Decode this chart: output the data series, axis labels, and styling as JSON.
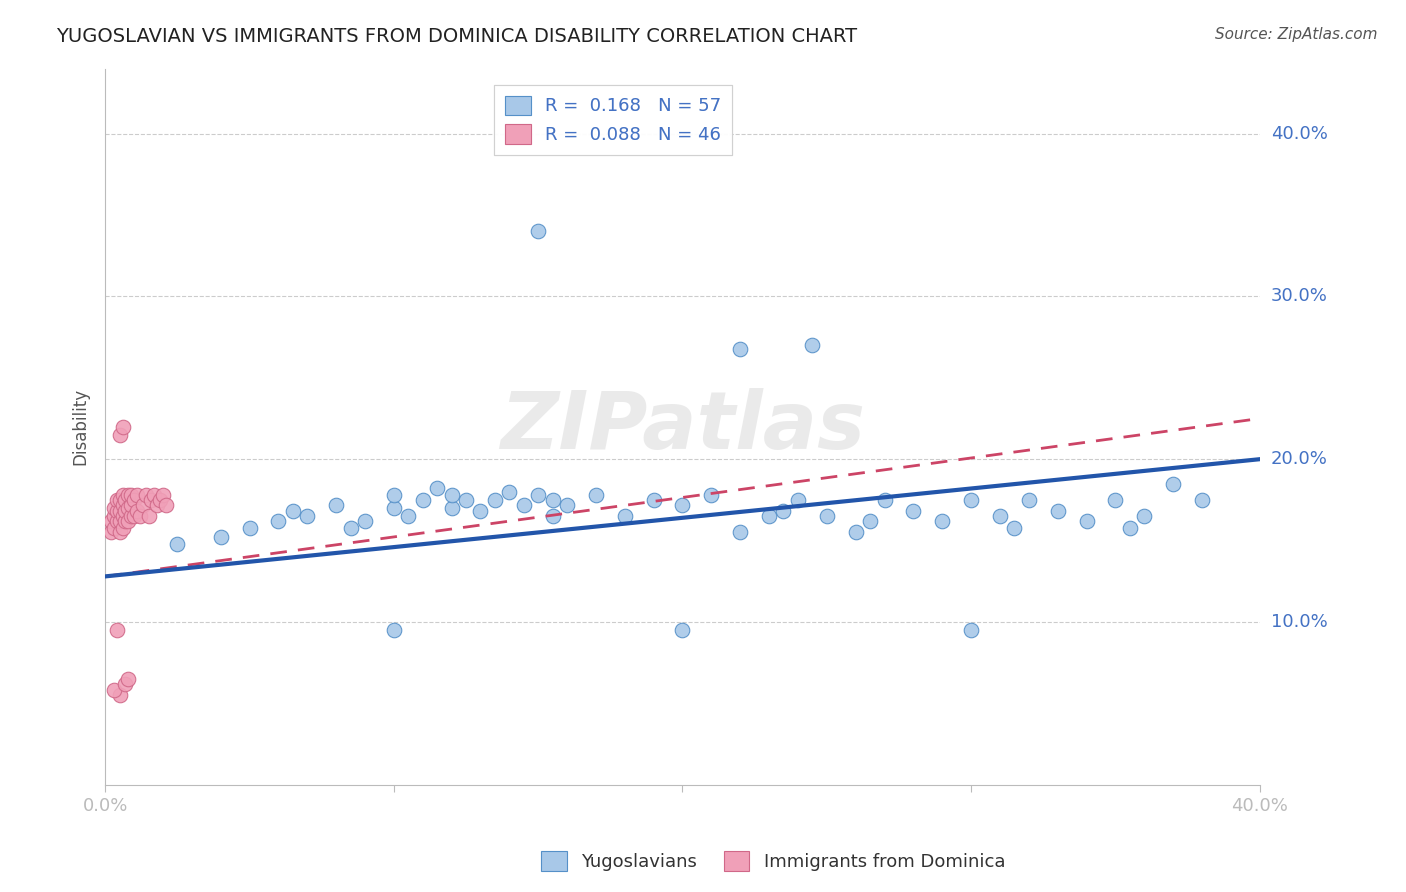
{
  "title": "YUGOSLAVIAN VS IMMIGRANTS FROM DOMINICA DISABILITY CORRELATION CHART",
  "source": "Source: ZipAtlas.com",
  "ylabel": "Disability",
  "y_tick_labels": [
    "10.0%",
    "20.0%",
    "30.0%",
    "40.0%"
  ],
  "y_tick_values": [
    0.1,
    0.2,
    0.3,
    0.4
  ],
  "xlim": [
    0.0,
    0.4
  ],
  "ylim": [
    0.0,
    0.44
  ],
  "legend1_R": "0.168",
  "legend1_N": "57",
  "legend2_R": "0.088",
  "legend2_N": "46",
  "blue_fill": "#A8C8E8",
  "blue_edge": "#5590C8",
  "pink_fill": "#F0A0B8",
  "pink_edge": "#D06888",
  "blue_line": "#2255AA",
  "pink_line": "#CC4466",
  "legend_label1": "Yugoslavians",
  "legend_label2": "Immigrants from Dominica",
  "watermark": "ZIPatlas",
  "blue_x": [
    0.025,
    0.04,
    0.05,
    0.06,
    0.065,
    0.07,
    0.08,
    0.085,
    0.09,
    0.1,
    0.1,
    0.105,
    0.11,
    0.115,
    0.12,
    0.12,
    0.125,
    0.13,
    0.135,
    0.14,
    0.145,
    0.15,
    0.155,
    0.155,
    0.16,
    0.17,
    0.18,
    0.19,
    0.2,
    0.21,
    0.22,
    0.23,
    0.235,
    0.24,
    0.25,
    0.26,
    0.265,
    0.27,
    0.28,
    0.29,
    0.3,
    0.31,
    0.315,
    0.32,
    0.33,
    0.34,
    0.35,
    0.355,
    0.36,
    0.37,
    0.245,
    0.38,
    0.22,
    0.15,
    0.2,
    0.1,
    0.3
  ],
  "blue_y": [
    0.148,
    0.152,
    0.158,
    0.162,
    0.168,
    0.165,
    0.172,
    0.158,
    0.162,
    0.17,
    0.178,
    0.165,
    0.175,
    0.182,
    0.17,
    0.178,
    0.175,
    0.168,
    0.175,
    0.18,
    0.172,
    0.178,
    0.165,
    0.175,
    0.172,
    0.178,
    0.165,
    0.175,
    0.172,
    0.178,
    0.155,
    0.165,
    0.168,
    0.175,
    0.165,
    0.155,
    0.162,
    0.175,
    0.168,
    0.162,
    0.175,
    0.165,
    0.158,
    0.175,
    0.168,
    0.162,
    0.175,
    0.158,
    0.165,
    0.185,
    0.27,
    0.175,
    0.268,
    0.34,
    0.095,
    0.095,
    0.095
  ],
  "pink_x": [
    0.002,
    0.002,
    0.003,
    0.003,
    0.003,
    0.004,
    0.004,
    0.004,
    0.005,
    0.005,
    0.005,
    0.005,
    0.006,
    0.006,
    0.006,
    0.006,
    0.007,
    0.007,
    0.007,
    0.008,
    0.008,
    0.008,
    0.009,
    0.009,
    0.009,
    0.01,
    0.01,
    0.011,
    0.011,
    0.012,
    0.013,
    0.014,
    0.015,
    0.016,
    0.017,
    0.018,
    0.019,
    0.02,
    0.021,
    0.005,
    0.006,
    0.004,
    0.005,
    0.003,
    0.007,
    0.008
  ],
  "pink_y": [
    0.155,
    0.162,
    0.158,
    0.165,
    0.17,
    0.162,
    0.168,
    0.175,
    0.155,
    0.162,
    0.168,
    0.175,
    0.158,
    0.165,
    0.172,
    0.178,
    0.162,
    0.168,
    0.175,
    0.162,
    0.17,
    0.178,
    0.165,
    0.172,
    0.178,
    0.165,
    0.175,
    0.168,
    0.178,
    0.165,
    0.172,
    0.178,
    0.165,
    0.175,
    0.178,
    0.172,
    0.175,
    0.178,
    0.172,
    0.215,
    0.22,
    0.095,
    0.055,
    0.058,
    0.062,
    0.065
  ]
}
